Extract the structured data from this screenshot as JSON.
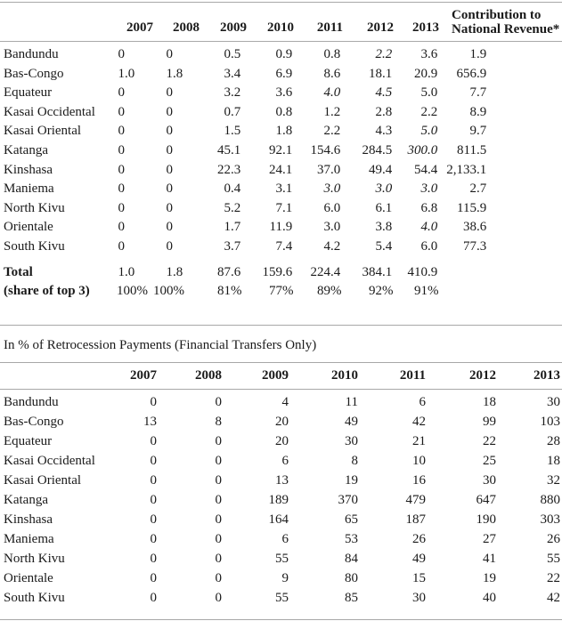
{
  "table1": {
    "columns": [
      "2007",
      "2008",
      "2009",
      "2010",
      "2011",
      "2012",
      "2013"
    ],
    "contribution_header": {
      "line1": "Contribution to",
      "line2": "National Revenue*"
    },
    "rows": [
      {
        "label": "Bandundu",
        "values": [
          "0",
          "0",
          "0.5",
          "0.9",
          "0.8",
          "2.2",
          "3.6",
          "1.9"
        ],
        "italic": [
          5
        ]
      },
      {
        "label": "Bas-Congo",
        "values": [
          "1.0",
          "1.8",
          "3.4",
          "6.9",
          "8.6",
          "18.1",
          "20.9",
          "656.9"
        ],
        "italic": []
      },
      {
        "label": "Equateur",
        "values": [
          "0",
          "0",
          "3.2",
          "3.6",
          "4.0",
          "4.5",
          "5.0",
          "7.7"
        ],
        "italic": [
          4,
          5
        ]
      },
      {
        "label": "Kasai Occidental",
        "values": [
          "0",
          "0",
          "0.7",
          "0.8",
          "1.2",
          "2.8",
          "2.2",
          "8.9"
        ],
        "italic": []
      },
      {
        "label": "Kasai Oriental",
        "values": [
          "0",
          "0",
          "1.5",
          "1.8",
          "2.2",
          "4.3",
          "5.0",
          "9.7"
        ],
        "italic": [
          6
        ]
      },
      {
        "label": "Katanga",
        "values": [
          "0",
          "0",
          "45.1",
          "92.1",
          "154.6",
          "284.5",
          "300.0",
          "811.5"
        ],
        "italic": [
          6
        ]
      },
      {
        "label": "Kinshasa",
        "values": [
          "0",
          "0",
          "22.3",
          "24.1",
          "37.0",
          "49.4",
          "54.4",
          "2,133.1"
        ],
        "italic": []
      },
      {
        "label": "Maniema",
        "values": [
          "0",
          "0",
          "0.4",
          "3.1",
          "3.0",
          "3.0",
          "3.0",
          "2.7"
        ],
        "italic": [
          4,
          5,
          6
        ]
      },
      {
        "label": "North Kivu",
        "values": [
          "0",
          "0",
          "5.2",
          "7.1",
          "6.0",
          "6.1",
          "6.8",
          "115.9"
        ],
        "italic": []
      },
      {
        "label": "Orientale",
        "values": [
          "0",
          "0",
          "1.7",
          "11.9",
          "3.0",
          "3.8",
          "4.0",
          "38.6"
        ],
        "italic": [
          6
        ]
      },
      {
        "label": "South Kivu",
        "values": [
          "0",
          "0",
          "3.7",
          "7.4",
          "4.2",
          "5.4",
          "6.0",
          "77.3"
        ],
        "italic": []
      }
    ],
    "total_row": {
      "label": "Total",
      "values": [
        "1.0",
        "1.8",
        "87.6",
        "159.6",
        "224.4",
        "384.1",
        "410.9",
        ""
      ],
      "italic": []
    },
    "share_row": {
      "label": "(share of top 3)",
      "values": [
        "100%",
        "100%",
        "81%",
        "77%",
        "89%",
        "92%",
        "91%",
        ""
      ],
      "italic": []
    }
  },
  "section2_title": "In % of Retrocession Payments (Financial Transfers Only)",
  "table2": {
    "columns": [
      "2007",
      "2008",
      "2009",
      "2010",
      "2011",
      "2012",
      "2013"
    ],
    "rows": [
      {
        "label": "Bandundu",
        "values": [
          "0",
          "0",
          "4",
          "11",
          "6",
          "18",
          "30"
        ]
      },
      {
        "label": "Bas-Congo",
        "values": [
          "13",
          "8",
          "20",
          "49",
          "42",
          "99",
          "103"
        ]
      },
      {
        "label": "Equateur",
        "values": [
          "0",
          "0",
          "20",
          "30",
          "21",
          "22",
          "28"
        ]
      },
      {
        "label": "Kasai Occidental",
        "values": [
          "0",
          "0",
          "6",
          "8",
          "10",
          "25",
          "18"
        ]
      },
      {
        "label": "Kasai Oriental",
        "values": [
          "0",
          "0",
          "13",
          "19",
          "16",
          "30",
          "32"
        ]
      },
      {
        "label": "Katanga",
        "values": [
          "0",
          "0",
          "189",
          "370",
          "479",
          "647",
          "880"
        ]
      },
      {
        "label": "Kinshasa",
        "values": [
          "0",
          "0",
          "164",
          "65",
          "187",
          "190",
          "303"
        ]
      },
      {
        "label": "Maniema",
        "values": [
          "0",
          "0",
          "6",
          "53",
          "26",
          "27",
          "26"
        ]
      },
      {
        "label": "North Kivu",
        "values": [
          "0",
          "0",
          "55",
          "84",
          "49",
          "41",
          "55"
        ]
      },
      {
        "label": "Orientale",
        "values": [
          "0",
          "0",
          "9",
          "80",
          "15",
          "19",
          "22"
        ]
      },
      {
        "label": "South Kivu",
        "values": [
          "0",
          "0",
          "55",
          "85",
          "30",
          "40",
          "42"
        ]
      }
    ]
  }
}
